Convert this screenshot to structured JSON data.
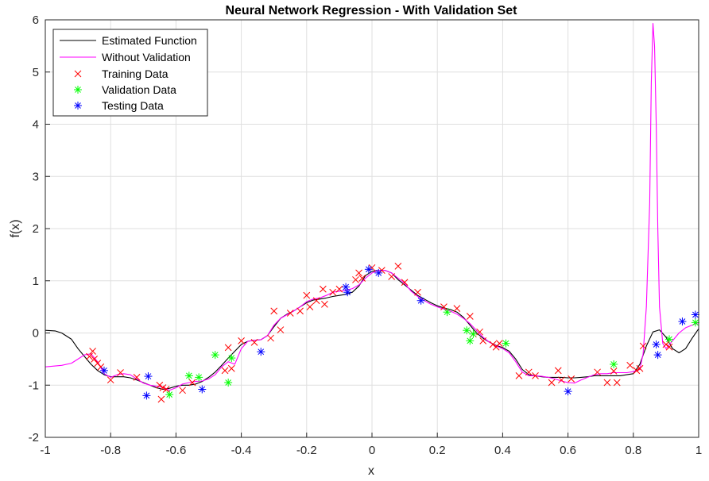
{
  "chart_data": {
    "type": "line",
    "title": "Neural Network Regression - With Validation Set",
    "xlabel": "x",
    "ylabel": "f(x)",
    "xlim": [
      -1,
      1
    ],
    "ylim": [
      -2,
      6
    ],
    "xticks": [
      "-1",
      "-0.8",
      "-0.6",
      "-0.4",
      "-0.2",
      "0",
      "0.2",
      "0.4",
      "0.6",
      "0.8",
      "1"
    ],
    "xtick_values": [
      -1,
      -0.8,
      -0.6,
      -0.4,
      -0.2,
      0,
      0.2,
      0.4,
      0.6,
      0.8,
      1
    ],
    "yticks": [
      "-2",
      "-1",
      "0",
      "1",
      "2",
      "3",
      "4",
      "5",
      "6"
    ],
    "ytick_values": [
      -2,
      -1,
      0,
      1,
      2,
      3,
      4,
      5,
      6
    ],
    "grid": true,
    "legend_position": "top-left",
    "series": [
      {
        "name": "Estimated Function",
        "kind": "line",
        "color": "#000000",
        "x": [
          -1,
          -0.97,
          -0.95,
          -0.92,
          -0.9,
          -0.88,
          -0.86,
          -0.84,
          -0.82,
          -0.8,
          -0.78,
          -0.76,
          -0.74,
          -0.72,
          -0.7,
          -0.68,
          -0.66,
          -0.64,
          -0.62,
          -0.6,
          -0.58,
          -0.56,
          -0.54,
          -0.52,
          -0.5,
          -0.48,
          -0.46,
          -0.44,
          -0.42,
          -0.4,
          -0.38,
          -0.36,
          -0.34,
          -0.32,
          -0.3,
          -0.28,
          -0.26,
          -0.24,
          -0.22,
          -0.2,
          -0.18,
          -0.16,
          -0.14,
          -0.12,
          -0.1,
          -0.08,
          -0.06,
          -0.04,
          -0.02,
          0,
          0.02,
          0.04,
          0.06,
          0.08,
          0.1,
          0.12,
          0.14,
          0.16,
          0.18,
          0.2,
          0.22,
          0.24,
          0.26,
          0.28,
          0.3,
          0.32,
          0.34,
          0.36,
          0.38,
          0.4,
          0.42,
          0.44,
          0.46,
          0.48,
          0.5,
          0.52,
          0.54,
          0.56,
          0.58,
          0.6,
          0.62,
          0.64,
          0.66,
          0.68,
          0.7,
          0.72,
          0.74,
          0.76,
          0.78,
          0.8,
          0.82,
          0.84,
          0.86,
          0.88,
          0.9,
          0.92,
          0.94,
          0.96,
          0.98,
          1
        ],
        "y": [
          0.05,
          0.04,
          0.0,
          -0.12,
          -0.3,
          -0.45,
          -0.6,
          -0.72,
          -0.8,
          -0.84,
          -0.84,
          -0.84,
          -0.86,
          -0.9,
          -0.95,
          -1.0,
          -1.05,
          -1.08,
          -1.06,
          -1.02,
          -1.0,
          -1.0,
          -0.98,
          -0.93,
          -0.85,
          -0.75,
          -0.62,
          -0.48,
          -0.35,
          -0.22,
          -0.16,
          -0.14,
          -0.13,
          -0.05,
          0.12,
          0.28,
          0.36,
          0.42,
          0.5,
          0.58,
          0.63,
          0.65,
          0.67,
          0.7,
          0.72,
          0.74,
          0.78,
          0.9,
          1.1,
          1.18,
          1.2,
          1.2,
          1.15,
          1.02,
          0.92,
          0.82,
          0.72,
          0.65,
          0.58,
          0.52,
          0.48,
          0.45,
          0.4,
          0.3,
          0.15,
          0.0,
          -0.1,
          -0.18,
          -0.24,
          -0.28,
          -0.35,
          -0.5,
          -0.7,
          -0.8,
          -0.82,
          -0.84,
          -0.85,
          -0.85,
          -0.85,
          -0.86,
          -0.86,
          -0.85,
          -0.84,
          -0.82,
          -0.82,
          -0.82,
          -0.82,
          -0.82,
          -0.8,
          -0.78,
          -0.6,
          -0.25,
          0.02,
          0.06,
          -0.08,
          -0.3,
          -0.38,
          -0.3,
          -0.1,
          0.08
        ]
      },
      {
        "name": "Without Validation",
        "kind": "line",
        "color": "#ff00ff",
        "x": [
          -1,
          -0.95,
          -0.92,
          -0.9,
          -0.88,
          -0.86,
          -0.84,
          -0.82,
          -0.8,
          -0.78,
          -0.76,
          -0.74,
          -0.72,
          -0.7,
          -0.68,
          -0.66,
          -0.64,
          -0.62,
          -0.6,
          -0.58,
          -0.56,
          -0.54,
          -0.52,
          -0.5,
          -0.48,
          -0.46,
          -0.44,
          -0.42,
          -0.4,
          -0.38,
          -0.36,
          -0.34,
          -0.32,
          -0.3,
          -0.28,
          -0.26,
          -0.24,
          -0.22,
          -0.2,
          -0.18,
          -0.16,
          -0.14,
          -0.12,
          -0.1,
          -0.08,
          -0.06,
          -0.04,
          -0.02,
          0,
          0.02,
          0.04,
          0.06,
          0.08,
          0.1,
          0.12,
          0.14,
          0.16,
          0.18,
          0.2,
          0.22,
          0.24,
          0.26,
          0.28,
          0.3,
          0.32,
          0.34,
          0.36,
          0.38,
          0.4,
          0.42,
          0.44,
          0.46,
          0.48,
          0.5,
          0.52,
          0.54,
          0.56,
          0.58,
          0.6,
          0.62,
          0.64,
          0.66,
          0.68,
          0.7,
          0.72,
          0.74,
          0.76,
          0.78,
          0.8,
          0.82,
          0.83,
          0.84,
          0.85,
          0.855,
          0.86,
          0.865,
          0.87,
          0.875,
          0.88,
          0.89,
          0.9,
          0.92,
          0.94,
          0.96,
          0.98,
          1
        ],
        "y": [
          -0.65,
          -0.62,
          -0.58,
          -0.5,
          -0.42,
          -0.4,
          -0.55,
          -0.78,
          -0.85,
          -0.8,
          -0.78,
          -0.8,
          -0.88,
          -0.96,
          -1.0,
          -1.02,
          -1.04,
          -1.1,
          -1.05,
          -0.98,
          -0.95,
          -0.93,
          -0.92,
          -0.88,
          -0.8,
          -0.65,
          -0.55,
          -0.6,
          -0.3,
          -0.16,
          -0.14,
          -0.13,
          -0.05,
          0.15,
          0.28,
          0.35,
          0.42,
          0.5,
          0.6,
          0.65,
          0.67,
          0.72,
          0.78,
          0.8,
          0.82,
          0.85,
          0.92,
          1.05,
          1.15,
          1.2,
          1.2,
          1.15,
          1.05,
          0.95,
          0.8,
          0.7,
          0.62,
          0.55,
          0.5,
          0.46,
          0.42,
          0.36,
          0.28,
          0.18,
          0.05,
          -0.08,
          -0.18,
          -0.25,
          -0.3,
          -0.38,
          -0.55,
          -0.75,
          -0.82,
          -0.82,
          -0.83,
          -0.85,
          -0.88,
          -0.92,
          -0.95,
          -0.96,
          -0.9,
          -0.85,
          -0.8,
          -0.78,
          -0.78,
          -0.76,
          -0.76,
          -0.76,
          -0.74,
          -0.7,
          -0.4,
          0.5,
          2.5,
          4.8,
          5.93,
          5.5,
          4.0,
          2.0,
          0.5,
          -0.2,
          -0.3,
          -0.15,
          0.0,
          0.1,
          0.15,
          0.2
        ]
      },
      {
        "name": "Training Data",
        "kind": "scatter",
        "marker": "x",
        "color": "#ff0000",
        "x": [
          -0.865,
          -0.855,
          -0.85,
          -0.84,
          -0.83,
          -0.8,
          -0.77,
          -0.72,
          -0.65,
          -0.645,
          -0.64,
          -0.63,
          -0.58,
          -0.55,
          -0.45,
          -0.44,
          -0.43,
          -0.4,
          -0.36,
          -0.31,
          -0.3,
          -0.28,
          -0.25,
          -0.22,
          -0.2,
          -0.19,
          -0.17,
          -0.15,
          -0.145,
          -0.12,
          -0.1,
          -0.05,
          -0.04,
          -0.03,
          0.0,
          0.03,
          0.06,
          0.08,
          0.1,
          0.14,
          0.22,
          0.26,
          0.3,
          0.31,
          0.33,
          0.34,
          0.37,
          0.38,
          0.39,
          0.45,
          0.48,
          0.5,
          0.55,
          0.57,
          0.58,
          0.61,
          0.69,
          0.72,
          0.74,
          0.75,
          0.79,
          0.81,
          0.82,
          0.83,
          0.9,
          0.91
        ],
        "y": [
          -0.45,
          -0.35,
          -0.5,
          -0.58,
          -0.65,
          -0.9,
          -0.76,
          -0.85,
          -1.0,
          -1.27,
          -1.05,
          -1.08,
          -1.1,
          -0.95,
          -0.72,
          -0.28,
          -0.68,
          -0.15,
          -0.18,
          -0.1,
          0.42,
          0.06,
          0.38,
          0.42,
          0.72,
          0.5,
          0.62,
          0.84,
          0.55,
          0.78,
          0.84,
          1.02,
          1.15,
          1.05,
          1.25,
          1.2,
          1.08,
          1.28,
          0.97,
          0.78,
          0.5,
          0.47,
          0.32,
          -0.02,
          0.02,
          -0.15,
          -0.22,
          -0.27,
          -0.2,
          -0.82,
          -0.75,
          -0.82,
          -0.95,
          -0.72,
          -0.9,
          -0.88,
          -0.75,
          -0.95,
          -0.73,
          -0.95,
          -0.62,
          -0.72,
          -0.68,
          -0.25,
          -0.22,
          -0.27
        ]
      },
      {
        "name": "Validation Data",
        "kind": "scatter",
        "marker": "*",
        "color": "#00ff00",
        "x": [
          -0.62,
          -0.56,
          -0.53,
          -0.48,
          -0.44,
          -0.43,
          0.23,
          0.29,
          0.3,
          0.31,
          0.41,
          0.74,
          0.91,
          0.99
        ],
        "y": [
          -1.18,
          -0.82,
          -0.85,
          -0.42,
          -0.95,
          -0.48,
          0.4,
          0.05,
          -0.15,
          -0.02,
          -0.2,
          -0.6,
          -0.12,
          0.2
        ]
      },
      {
        "name": "Testing Data",
        "kind": "scatter",
        "marker": "*",
        "color": "#0000ff",
        "x": [
          -0.82,
          -0.69,
          -0.685,
          -0.52,
          -0.34,
          -0.08,
          -0.075,
          -0.01,
          0.02,
          0.15,
          0.6,
          0.87,
          0.875,
          0.95,
          0.99
        ],
        "y": [
          -0.72,
          -1.2,
          -0.83,
          -1.08,
          -0.36,
          0.88,
          0.78,
          1.22,
          1.15,
          0.62,
          -1.12,
          -0.22,
          -0.42,
          0.22,
          0.35
        ]
      }
    ]
  }
}
